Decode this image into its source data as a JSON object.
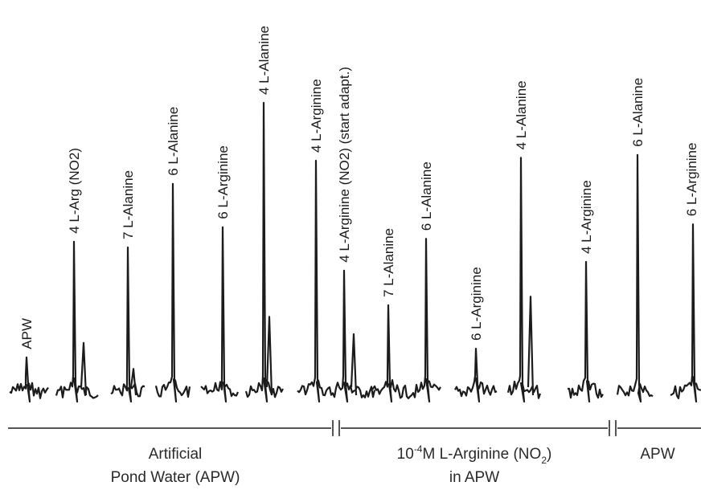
{
  "chart_data": {
    "type": "line",
    "stimuli": [
      {
        "label": "APW",
        "dose": "",
        "substance": "APW",
        "response": 0.12
      },
      {
        "label": "4 L-Arg (NO2)",
        "dose": "4",
        "substance": "L-Arg (NO2)",
        "response": 0.52
      },
      {
        "label": "7 L-Alanine",
        "dose": "7",
        "substance": "L-Alanine",
        "response": 0.5
      },
      {
        "label": "6 L-Alanine",
        "dose": "6",
        "substance": "L-Alanine",
        "response": 0.72
      },
      {
        "label": "6 L-Arginine",
        "dose": "6",
        "substance": "L-Arginine",
        "response": 0.57
      },
      {
        "label": "4 L-Alanine",
        "dose": "4",
        "substance": "L-Alanine",
        "response": 1.0
      },
      {
        "label": "4 L-Arginine",
        "dose": "4",
        "substance": "L-Arginine",
        "response": 0.8
      },
      {
        "label": "4 L-Arginine (NO2) (start adapt.)",
        "dose": "4",
        "substance": "L-Arginine (NO2)",
        "response": 0.42
      },
      {
        "label": "7 L-Alanine",
        "dose": "7",
        "substance": "L-Alanine",
        "response": 0.3
      },
      {
        "label": "6 L-Alanine",
        "dose": "6",
        "substance": "L-Alanine",
        "response": 0.53
      },
      {
        "label": "6 L-Arginine",
        "dose": "6",
        "substance": "L-Arginine",
        "response": 0.15
      },
      {
        "label": "4 L-Alanine",
        "dose": "4",
        "substance": "L-Alanine",
        "response": 0.81
      },
      {
        "label": "4 L-Arginine",
        "dose": "4",
        "substance": "L-Arginine",
        "response": 0.45
      },
      {
        "label": "6 L-Alanine",
        "dose": "6",
        "substance": "L-Alanine",
        "response": 0.82
      },
      {
        "label": "6 L-Arginine",
        "dose": "6",
        "substance": "L-Arginine",
        "response": 0.58
      }
    ],
    "conditions": [
      {
        "line1": "Artificial",
        "line2": "Pond Water (APW)"
      },
      {
        "line1": "10",
        "sup": "-4",
        "line1b": "M L-Arginine (NO",
        "sub": "2",
        "line1c": ")",
        "line2": "in APW"
      },
      {
        "line1": "APW",
        "line2": ""
      }
    ],
    "title": "",
    "xlabel": "",
    "ylabel": ""
  },
  "colors": {
    "trace": "#1c1c1c",
    "axis": "#555555",
    "text": "#1a1a1a"
  }
}
